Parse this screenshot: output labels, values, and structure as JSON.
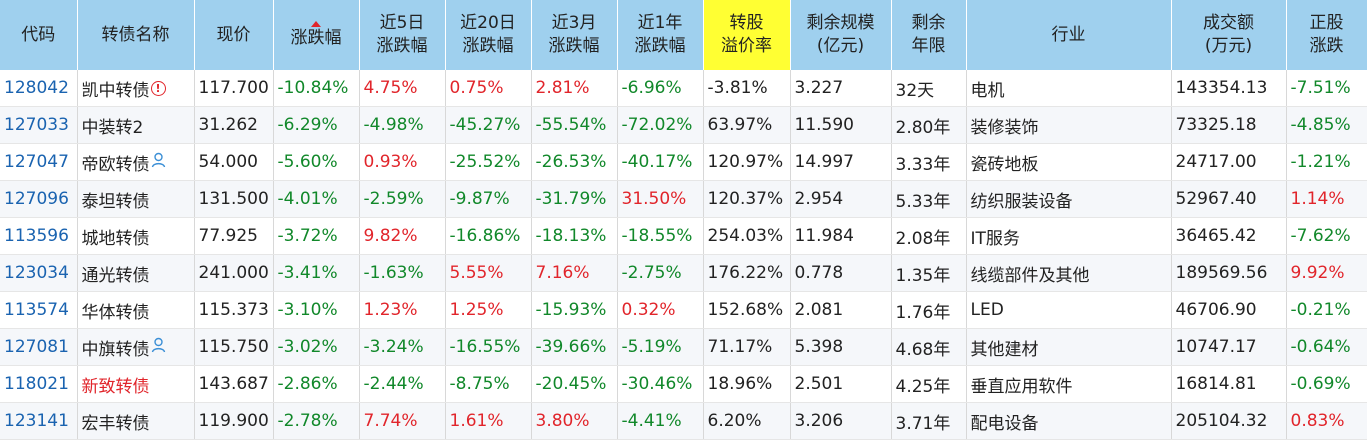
{
  "headers": [
    {
      "label": "代码",
      "name": "header-code"
    },
    {
      "label": "转债名称",
      "name": "header-bond-name"
    },
    {
      "label": "现价",
      "name": "header-price"
    },
    {
      "label": "涨跌幅",
      "name": "header-change",
      "sorted": true
    },
    {
      "label": "近5日\n涨跌幅",
      "name": "header-change-5d"
    },
    {
      "label": "近20日\n涨跌幅",
      "name": "header-change-20d"
    },
    {
      "label": "近3月\n涨跌幅",
      "name": "header-change-3m"
    },
    {
      "label": "近1年\n涨跌幅",
      "name": "header-change-1y"
    },
    {
      "label": "转股\n溢价率",
      "name": "header-premium",
      "highlight": true
    },
    {
      "label": "剩余规模\n(亿元)",
      "name": "header-remaining-size"
    },
    {
      "label": "剩余\n年限",
      "name": "header-remaining-years"
    },
    {
      "label": "行业",
      "name": "header-industry"
    },
    {
      "label": "成交额\n(万元)",
      "name": "header-turnover"
    },
    {
      "label": "正股\n涨跌",
      "name": "header-stock-change"
    }
  ],
  "colors": {
    "up": "#e1252b",
    "down": "#11882a",
    "header_bg": "#9fd0ee",
    "highlight_bg": "#ffff33",
    "code": "#1a63b0"
  },
  "rows": [
    {
      "code": "128042",
      "name": "凯中转债",
      "icon": "warning-icon",
      "price": "117.700",
      "chg": "-10.84%",
      "chg5d": "4.75%",
      "chg20d": "0.75%",
      "chg3m": "2.81%",
      "chg1y": "-6.96%",
      "premium": "-3.81%",
      "size": "3.227",
      "years": "32天",
      "industry": "电机",
      "turnover": "143354.13",
      "stock": "-7.51%"
    },
    {
      "code": "127033",
      "name": "中装转2",
      "icon": "",
      "price": "31.262",
      "chg": "-6.29%",
      "chg5d": "-4.98%",
      "chg20d": "-45.27%",
      "chg3m": "-55.54%",
      "chg1y": "-72.02%",
      "premium": "63.97%",
      "size": "11.590",
      "years": "2.80年",
      "industry": "装修装饰",
      "turnover": "73325.18",
      "stock": "-4.85%"
    },
    {
      "code": "127047",
      "name": "帝欧转债",
      "icon": "person-icon",
      "price": "54.000",
      "chg": "-5.60%",
      "chg5d": "0.93%",
      "chg20d": "-25.52%",
      "chg3m": "-26.53%",
      "chg1y": "-40.17%",
      "premium": "120.97%",
      "size": "14.997",
      "years": "3.33年",
      "industry": "瓷砖地板",
      "turnover": "24717.00",
      "stock": "-1.21%"
    },
    {
      "code": "127096",
      "name": "泰坦转债",
      "icon": "",
      "price": "131.500",
      "chg": "-4.01%",
      "chg5d": "-2.59%",
      "chg20d": "-9.87%",
      "chg3m": "-31.79%",
      "chg1y": "31.50%",
      "premium": "120.37%",
      "size": "2.954",
      "years": "5.33年",
      "industry": "纺织服装设备",
      "turnover": "52967.40",
      "stock": "1.14%"
    },
    {
      "code": "113596",
      "name": "城地转债",
      "icon": "",
      "price": "77.925",
      "chg": "-3.72%",
      "chg5d": "9.82%",
      "chg20d": "-16.86%",
      "chg3m": "-18.13%",
      "chg1y": "-18.55%",
      "premium": "254.03%",
      "size": "11.984",
      "years": "2.08年",
      "industry": "IT服务",
      "turnover": "36465.42",
      "stock": "-7.62%"
    },
    {
      "code": "123034",
      "name": "通光转债",
      "icon": "",
      "price": "241.000",
      "chg": "-3.41%",
      "chg5d": "-1.63%",
      "chg20d": "5.55%",
      "chg3m": "7.16%",
      "chg1y": "-2.75%",
      "premium": "176.22%",
      "size": "0.778",
      "years": "1.35年",
      "industry": "线缆部件及其他",
      "turnover": "189569.56",
      "stock": "9.92%"
    },
    {
      "code": "113574",
      "name": "华体转债",
      "icon": "",
      "price": "115.373",
      "chg": "-3.10%",
      "chg5d": "1.23%",
      "chg20d": "1.25%",
      "chg3m": "-15.93%",
      "chg1y": "0.32%",
      "premium": "152.68%",
      "size": "2.081",
      "years": "1.76年",
      "industry": "LED",
      "turnover": "46706.90",
      "stock": "-0.21%"
    },
    {
      "code": "127081",
      "name": "中旗转债",
      "icon": "person-icon",
      "price": "115.750",
      "chg": "-3.02%",
      "chg5d": "-3.24%",
      "chg20d": "-16.55%",
      "chg3m": "-39.66%",
      "chg1y": "-5.19%",
      "premium": "71.17%",
      "size": "5.398",
      "years": "4.68年",
      "industry": "其他建材",
      "turnover": "10747.17",
      "stock": "-0.64%"
    },
    {
      "code": "118021",
      "name": "新致转债",
      "icon": "",
      "name_red": true,
      "price": "143.687",
      "chg": "-2.86%",
      "chg5d": "-2.44%",
      "chg20d": "-8.75%",
      "chg3m": "-20.45%",
      "chg1y": "-30.46%",
      "premium": "18.96%",
      "size": "2.501",
      "years": "4.25年",
      "industry": "垂直应用软件",
      "turnover": "16814.81",
      "stock": "-0.69%"
    },
    {
      "code": "123141",
      "name": "宏丰转债",
      "icon": "",
      "price": "119.900",
      "chg": "-2.78%",
      "chg5d": "7.74%",
      "chg20d": "1.61%",
      "chg3m": "3.80%",
      "chg1y": "-4.41%",
      "premium": "6.20%",
      "size": "3.206",
      "years": "3.71年",
      "industry": "配电设备",
      "turnover": "205104.32",
      "stock": "0.83%"
    }
  ]
}
